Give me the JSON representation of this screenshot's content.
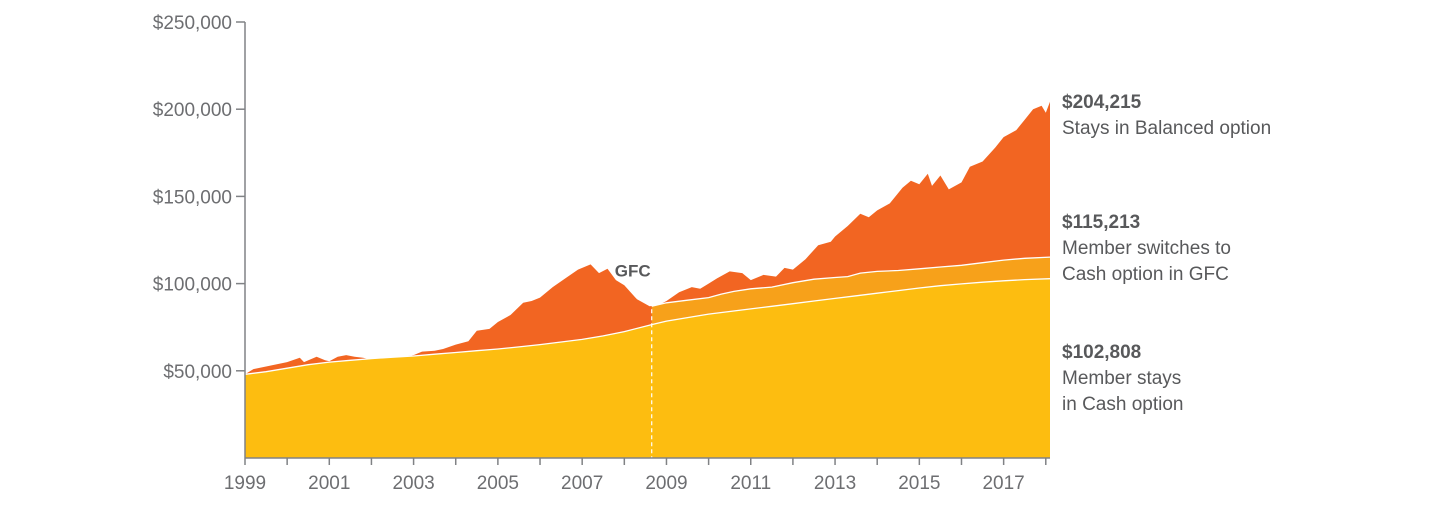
{
  "chart_data": {
    "type": "area",
    "x_unit": "year",
    "xlim": [
      1999,
      2018.1
    ],
    "ylim": [
      0,
      250000
    ],
    "y_ticks": [
      {
        "value": 50000,
        "label": "$50,000"
      },
      {
        "value": 100000,
        "label": "$100,000"
      },
      {
        "value": 150000,
        "label": "$150,000"
      },
      {
        "value": 200000,
        "label": "$200,000"
      },
      {
        "value": 250000,
        "label": "$250,000"
      }
    ],
    "x_ticks": [
      1999,
      2000,
      2001,
      2002,
      2003,
      2004,
      2005,
      2006,
      2007,
      2008,
      2009,
      2010,
      2011,
      2012,
      2013,
      2014,
      2015,
      2016,
      2017,
      2018
    ],
    "x_tick_labels": [
      {
        "value": 1999,
        "label": "1999"
      },
      {
        "value": 2001,
        "label": "2001"
      },
      {
        "value": 2003,
        "label": "2003"
      },
      {
        "value": 2005,
        "label": "2005"
      },
      {
        "value": 2007,
        "label": "2007"
      },
      {
        "value": 2009,
        "label": "2009"
      },
      {
        "value": 2011,
        "label": "2011"
      },
      {
        "value": 2013,
        "label": "2013"
      },
      {
        "value": 2015,
        "label": "2015"
      },
      {
        "value": 2017,
        "label": "2017"
      }
    ],
    "grid": false,
    "gfc": {
      "label": "GFC",
      "x": 2008.65,
      "label_x": 2008.2,
      "label_y": 104000
    },
    "series": [
      {
        "key": "balanced",
        "color": "#f26522",
        "final_value": "$204,215",
        "label_lines": [
          "Stays in Balanced option"
        ],
        "points": [
          [
            1999,
            48000
          ],
          [
            1999.2,
            51000
          ],
          [
            1999.6,
            53000
          ],
          [
            2000,
            55000
          ],
          [
            2000.3,
            57500
          ],
          [
            2000.4,
            55000
          ],
          [
            2000.7,
            58000
          ],
          [
            2000.9,
            56000
          ],
          [
            2001,
            55500
          ],
          [
            2001.2,
            58000
          ],
          [
            2001.4,
            59000
          ],
          [
            2001.6,
            58000
          ],
          [
            2001.8,
            57500
          ],
          [
            2002,
            56500
          ],
          [
            2002.3,
            56000
          ],
          [
            2002.6,
            57500
          ],
          [
            2003,
            59000
          ],
          [
            2003.2,
            61000
          ],
          [
            2003.5,
            61500
          ],
          [
            2003.7,
            62500
          ],
          [
            2004,
            65000
          ],
          [
            2004.3,
            67000
          ],
          [
            2004.5,
            73000
          ],
          [
            2004.8,
            74000
          ],
          [
            2005,
            78000
          ],
          [
            2005.3,
            82000
          ],
          [
            2005.6,
            89000
          ],
          [
            2005.8,
            90000
          ],
          [
            2006,
            92000
          ],
          [
            2006.3,
            98000
          ],
          [
            2006.6,
            103000
          ],
          [
            2006.9,
            108000
          ],
          [
            2007.2,
            111000
          ],
          [
            2007.4,
            106000
          ],
          [
            2007.6,
            108500
          ],
          [
            2007.8,
            102000
          ],
          [
            2008,
            99000
          ],
          [
            2008.3,
            91000
          ],
          [
            2008.6,
            87000
          ],
          [
            2008.8,
            87500
          ],
          [
            2009,
            90000
          ],
          [
            2009.3,
            95000
          ],
          [
            2009.6,
            98000
          ],
          [
            2009.8,
            97000
          ],
          [
            2010,
            100000
          ],
          [
            2010.2,
            103000
          ],
          [
            2010.5,
            107000
          ],
          [
            2010.8,
            106000
          ],
          [
            2011,
            102000
          ],
          [
            2011.3,
            105000
          ],
          [
            2011.6,
            104000
          ],
          [
            2011.8,
            109000
          ],
          [
            2012,
            108000
          ],
          [
            2012.3,
            114000
          ],
          [
            2012.6,
            122000
          ],
          [
            2012.9,
            124000
          ],
          [
            2013,
            127000
          ],
          [
            2013.3,
            133000
          ],
          [
            2013.6,
            140000
          ],
          [
            2013.8,
            138000
          ],
          [
            2014,
            142000
          ],
          [
            2014.3,
            146000
          ],
          [
            2014.6,
            155000
          ],
          [
            2014.8,
            159000
          ],
          [
            2015,
            157000
          ],
          [
            2015.2,
            163000
          ],
          [
            2015.3,
            156000
          ],
          [
            2015.5,
            162000
          ],
          [
            2015.7,
            154000
          ],
          [
            2016,
            158000
          ],
          [
            2016.2,
            167000
          ],
          [
            2016.5,
            170000
          ],
          [
            2016.8,
            178000
          ],
          [
            2017,
            184000
          ],
          [
            2017.3,
            188000
          ],
          [
            2017.5,
            194000
          ],
          [
            2017.7,
            200000
          ],
          [
            2017.9,
            202000
          ],
          [
            2018,
            198000
          ],
          [
            2018.1,
            204215
          ]
        ]
      },
      {
        "key": "switch",
        "color": "#f7a11a",
        "final_value": "$115,213",
        "label_lines": [
          "Member switches to",
          "Cash option in GFC"
        ],
        "points": [
          [
            2008.65,
            87000
          ],
          [
            2009,
            89000
          ],
          [
            2009.5,
            90500
          ],
          [
            2010,
            92000
          ],
          [
            2010.3,
            94000
          ],
          [
            2010.6,
            95500
          ],
          [
            2011,
            97000
          ],
          [
            2011.5,
            98000
          ],
          [
            2012,
            100500
          ],
          [
            2012.5,
            102500
          ],
          [
            2013,
            103500
          ],
          [
            2013.3,
            104000
          ],
          [
            2013.6,
            106000
          ],
          [
            2014,
            107000
          ],
          [
            2014.5,
            107500
          ],
          [
            2015,
            108500
          ],
          [
            2015.5,
            109500
          ],
          [
            2016,
            110500
          ],
          [
            2016.5,
            112000
          ],
          [
            2017,
            113500
          ],
          [
            2017.5,
            114500
          ],
          [
            2018.1,
            115213
          ]
        ]
      },
      {
        "key": "cash",
        "color": "#fdbd10",
        "final_value": "$102,808",
        "label_lines": [
          "Member stays",
          "in Cash option"
        ],
        "points": [
          [
            1999,
            48000
          ],
          [
            1999.5,
            49500
          ],
          [
            2000,
            51500
          ],
          [
            2000.5,
            53500
          ],
          [
            2001,
            55000
          ],
          [
            2001.5,
            56000
          ],
          [
            2002,
            57000
          ],
          [
            2002.5,
            57800
          ],
          [
            2003,
            58500
          ],
          [
            2003.5,
            59500
          ],
          [
            2004,
            60500
          ],
          [
            2004.5,
            61500
          ],
          [
            2005,
            62500
          ],
          [
            2005.5,
            63700
          ],
          [
            2006,
            65000
          ],
          [
            2006.5,
            66500
          ],
          [
            2007,
            68000
          ],
          [
            2007.5,
            70000
          ],
          [
            2008,
            72500
          ],
          [
            2008.65,
            76500
          ],
          [
            2009,
            78500
          ],
          [
            2009.5,
            80500
          ],
          [
            2010,
            82500
          ],
          [
            2010.5,
            84000
          ],
          [
            2011,
            85500
          ],
          [
            2011.5,
            87000
          ],
          [
            2012,
            88500
          ],
          [
            2012.5,
            90000
          ],
          [
            2013,
            91500
          ],
          [
            2013.5,
            93000
          ],
          [
            2014,
            94500
          ],
          [
            2014.5,
            96000
          ],
          [
            2015,
            97500
          ],
          [
            2015.5,
            98800
          ],
          [
            2016,
            99800
          ],
          [
            2016.5,
            100800
          ],
          [
            2017,
            101600
          ],
          [
            2017.5,
            102300
          ],
          [
            2018.1,
            102808
          ]
        ]
      }
    ]
  }
}
